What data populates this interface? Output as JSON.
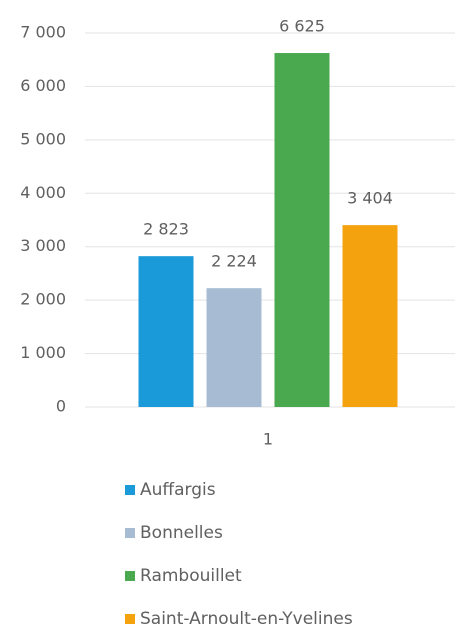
{
  "chart_data": {
    "type": "bar",
    "categories": [
      "1"
    ],
    "series": [
      {
        "name": "Auffargis",
        "color": "#1a9ad8",
        "values": [
          2823
        ],
        "value_labels": [
          "2 823"
        ]
      },
      {
        "name": "Bonnelles",
        "color": "#a7bcd2",
        "values": [
          2224
        ],
        "value_labels": [
          "2 224"
        ]
      },
      {
        "name": "Rambouillet",
        "color": "#4aa84e",
        "values": [
          6625
        ],
        "value_labels": [
          "6 625"
        ]
      },
      {
        "name": "Saint-Arnoult-en-Yvelines",
        "color": "#f5a20f",
        "values": [
          3404
        ],
        "value_labels": [
          "3 404"
        ]
      }
    ],
    "ylim": [
      0,
      7000
    ],
    "yticks": [
      0,
      {
        "value": 1000,
        "label": "1 000"
      },
      {
        "value": 2000,
        "label": "2 000"
      },
      {
        "value": 3000,
        "label": "3 000"
      },
      {
        "value": 4000,
        "label": "4 000"
      },
      {
        "value": 5000,
        "label": "5 000"
      },
      {
        "value": 6000,
        "label": "6 000"
      },
      {
        "value": 7000,
        "label": "7 000"
      }
    ],
    "grid": true,
    "legend": "bottom"
  }
}
